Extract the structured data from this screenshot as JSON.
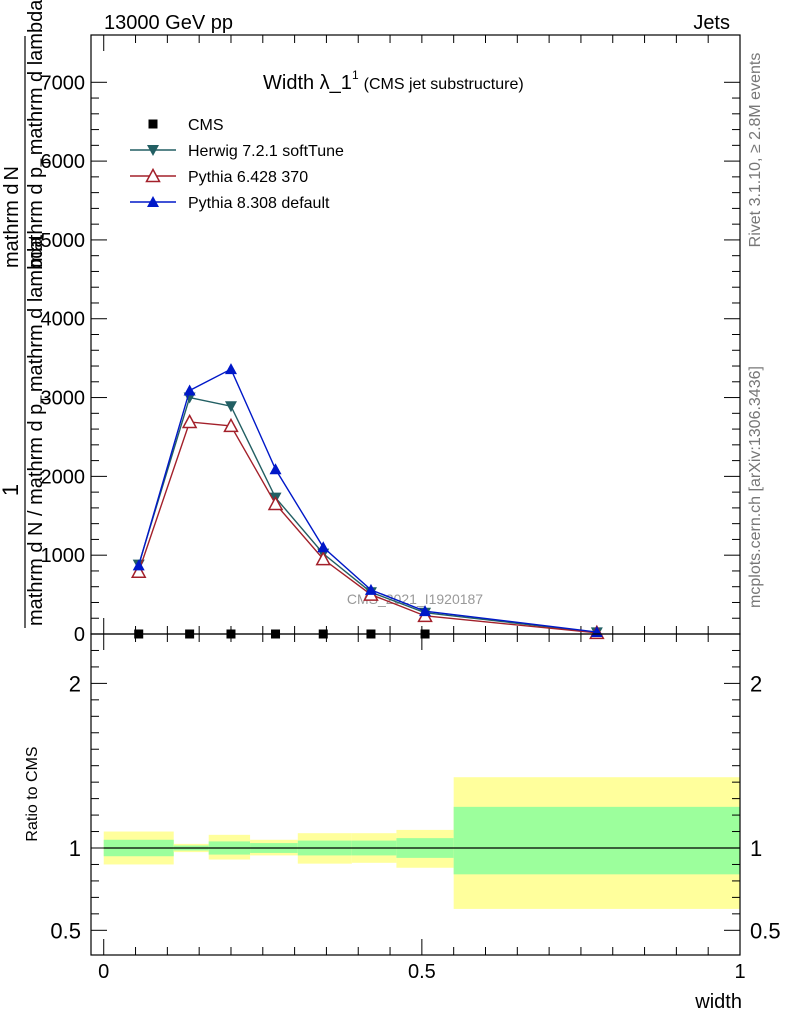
{
  "header": {
    "left": "13000 GeV pp",
    "right": "Jets"
  },
  "side_labels": {
    "rivet": "Rivet 3.1.10, ≥ 2.8M events",
    "mcplots": "mcplots.cern.ch [arXiv:1306.3436]"
  },
  "colors": {
    "cms": "#000000",
    "herwig": "#225f63",
    "pythia6": "#a3202a",
    "pythia8": "#0018c8",
    "band_inner": "#9cff9c",
    "band_outer": "#ffff9c"
  },
  "chart_data": [
    {
      "type": "line",
      "title_main": "Width λ_1",
      "title_sup": "1",
      "title_rest": "(CMS jet substructure)",
      "ylabel": {
        "frac_top": "1",
        "frac_bottom": "mathrm d N / mathrm d p",
        "sub_t": "T",
        "mid_rest": "mathrm d lambda",
        "upper_num": "mathrm d",
        "upper_num2": "N",
        "upper_den": "mathrm d p",
        "upper_den_t": "T",
        "upper_den_rest": "mathrm d lambda"
      },
      "watermark": "CMS_2021_I1920187",
      "ylim": [
        0,
        7600
      ],
      "yticks": [
        {
          "v": 0,
          "label": "0"
        },
        {
          "v": 1000,
          "label": "1000"
        },
        {
          "v": 2000,
          "label": "2000"
        },
        {
          "v": 3000,
          "label": "3000"
        },
        {
          "v": 4000,
          "label": "4000"
        },
        {
          "v": 5000,
          "label": "5000"
        },
        {
          "v": 6000,
          "label": "6000"
        },
        {
          "v": 7000,
          "label": "7000"
        }
      ],
      "series": [
        {
          "name": "CMS",
          "marker": "square",
          "x": [
            0.055,
            0.135,
            0.2,
            0.27,
            0.345,
            0.42,
            0.505
          ],
          "y": [
            0,
            0,
            0,
            0,
            0,
            0,
            0
          ]
        },
        {
          "name": "Herwig 7.2.1 softTune",
          "marker": "triangle-down",
          "x": [
            0.055,
            0.135,
            0.2,
            0.27,
            0.345,
            0.42,
            0.505,
            0.775
          ],
          "y": [
            880,
            3000,
            2890,
            1730,
            1020,
            530,
            270,
            20
          ]
        },
        {
          "name": "Pythia 6.428 370",
          "marker": "triangle-open",
          "x": [
            0.055,
            0.135,
            0.2,
            0.27,
            0.345,
            0.42,
            0.505,
            0.775
          ],
          "y": [
            790,
            2690,
            2640,
            1650,
            950,
            500,
            230,
            15
          ]
        },
        {
          "name": "Pythia 8.308 default",
          "marker": "triangle-up",
          "x": [
            0.055,
            0.135,
            0.2,
            0.27,
            0.345,
            0.42,
            0.505,
            0.775
          ],
          "y": [
            870,
            3090,
            3360,
            2090,
            1100,
            560,
            290,
            25
          ]
        }
      ]
    },
    {
      "type": "area",
      "ylabel": "Ratio to CMS",
      "xlabel": "width",
      "xlim": [
        0,
        1
      ],
      "ylim": [
        0.35,
        2.3
      ],
      "xticks": [
        {
          "v": 0,
          "label": "0"
        },
        {
          "v": 0.5,
          "label": "0.5"
        },
        {
          "v": 1,
          "label": "1"
        }
      ],
      "yticks": [
        {
          "v": 0.5,
          "label": "0.5"
        },
        {
          "v": 1,
          "label": "1"
        },
        {
          "v": 2,
          "label": "2"
        }
      ],
      "bins": [
        {
          "x0": 0.0,
          "x1": 0.11,
          "inner": [
            0.95,
            1.05
          ],
          "outer": [
            0.9,
            1.1
          ]
        },
        {
          "x0": 0.11,
          "x1": 0.165,
          "inner": [
            0.985,
            1.015
          ],
          "outer": [
            0.975,
            1.025
          ]
        },
        {
          "x0": 0.165,
          "x1": 0.23,
          "inner": [
            0.96,
            1.04
          ],
          "outer": [
            0.93,
            1.08
          ]
        },
        {
          "x0": 0.23,
          "x1": 0.305,
          "inner": [
            0.97,
            1.03
          ],
          "outer": [
            0.955,
            1.05
          ]
        },
        {
          "x0": 0.305,
          "x1": 0.39,
          "inner": [
            0.955,
            1.045
          ],
          "outer": [
            0.905,
            1.09
          ]
        },
        {
          "x0": 0.39,
          "x1": 0.46,
          "inner": [
            0.955,
            1.045
          ],
          "outer": [
            0.91,
            1.09
          ]
        },
        {
          "x0": 0.46,
          "x1": 0.55,
          "inner": [
            0.94,
            1.06
          ],
          "outer": [
            0.88,
            1.11
          ]
        },
        {
          "x0": 0.55,
          "x1": 1.0,
          "inner": [
            0.84,
            1.25
          ],
          "outer": [
            0.63,
            1.43
          ]
        }
      ]
    }
  ]
}
